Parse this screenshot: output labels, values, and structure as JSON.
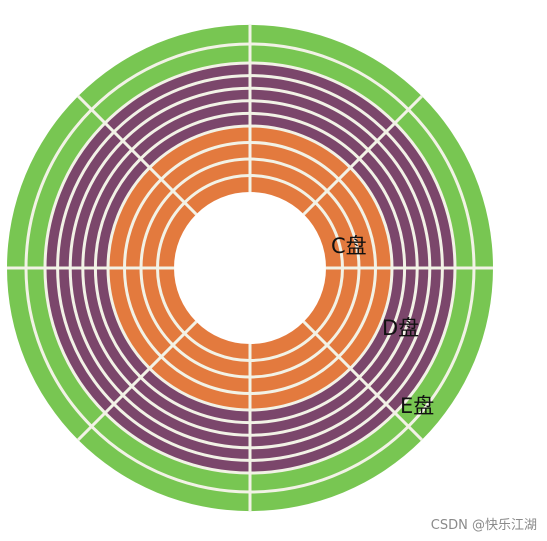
{
  "diagram": {
    "partitions": [
      {
        "label": "C盘",
        "color": "#e37a3e",
        "tracks": 4
      },
      {
        "label": "D盘",
        "color": "#7b466b",
        "tracks": 5
      },
      {
        "label": "E盘",
        "color": "#78c652",
        "tracks": 2
      }
    ],
    "separator_color": "#f2f2e6",
    "label_color": "#111111"
  },
  "watermark": "CSDN @快乐江湖"
}
